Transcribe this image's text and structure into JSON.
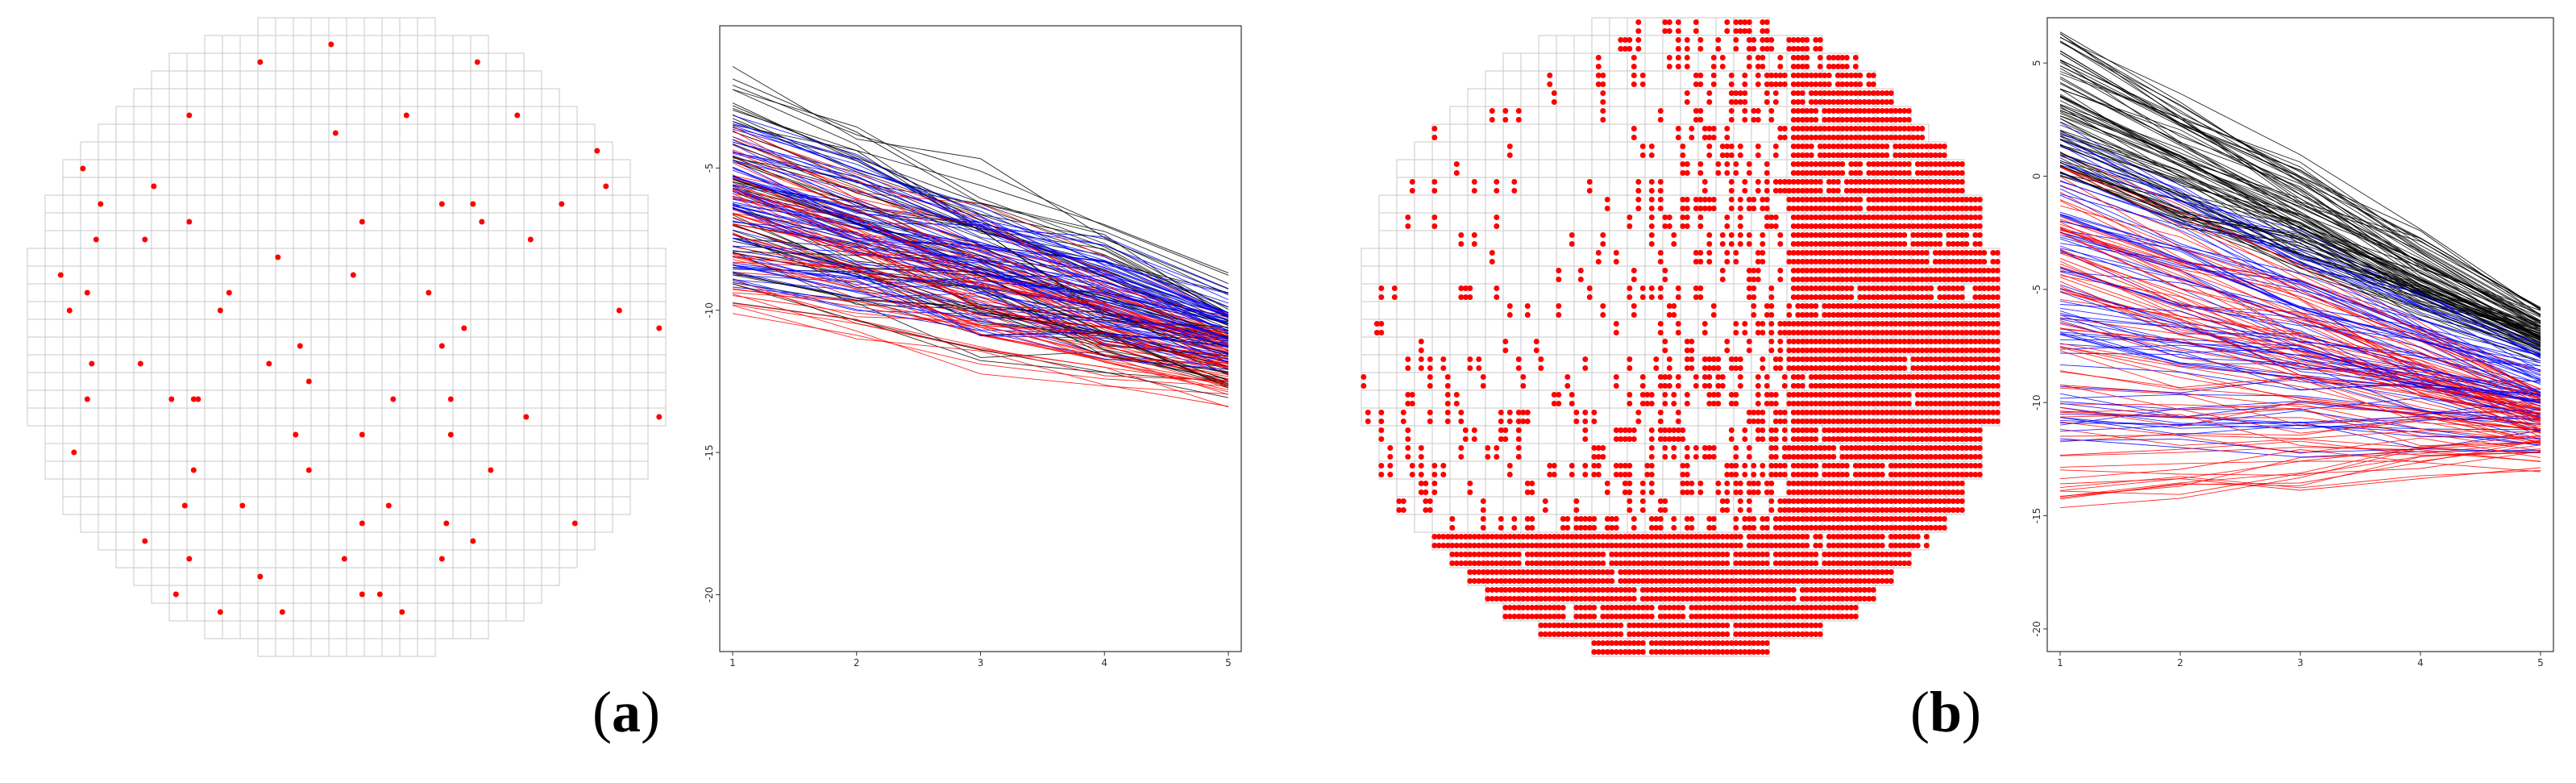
{
  "panels": [
    {
      "id": "a",
      "label_open": "(",
      "letter": "a",
      "label_close": ")"
    },
    {
      "id": "b",
      "label_open": "(",
      "letter": "b",
      "label_close": ")"
    }
  ],
  "colors": {
    "defect": "#ff0000",
    "grid": "#c8c8c8",
    "series_black": "#000000",
    "series_blue": "#0000ff",
    "series_red": "#ff0000",
    "frame": "#333333"
  },
  "chart_data": [
    {
      "type": "scatter",
      "panel": "a",
      "description_kind": "wafer-map",
      "grid": true,
      "defect_density": "sparse",
      "defects_rel": []
    },
    {
      "type": "line",
      "panel": "a",
      "x": [
        1,
        2,
        3,
        4,
        5
      ],
      "xticks": [
        "1",
        "2",
        "3",
        "4",
        "5"
      ],
      "yticks": [
        "-5",
        "-10",
        "-15",
        "-20"
      ],
      "yticks_values": [
        -5,
        -10,
        -15,
        -20
      ],
      "ylim": [
        -22,
        0
      ],
      "series": [
        {
          "color": "black",
          "start_range": [
            -1.5,
            -9.5
          ],
          "end_range": [
            -8.5,
            -13.5
          ],
          "count": 55
        },
        {
          "color": "blue",
          "start_range": [
            -3,
            -9
          ],
          "end_range": [
            -9,
            -12.5
          ],
          "count": 70
        },
        {
          "color": "red",
          "start_range": [
            -3.5,
            -10
          ],
          "end_range": [
            -10,
            -13.5
          ],
          "count": 60
        }
      ]
    },
    {
      "type": "scatter",
      "panel": "b",
      "description_kind": "wafer-map",
      "grid": true,
      "defect_density": "dense"
    },
    {
      "type": "line",
      "panel": "b",
      "x": [
        1,
        2,
        3,
        4,
        5
      ],
      "xticks": [
        "1",
        "2",
        "3",
        "4",
        "5"
      ],
      "yticks": [
        "5",
        "0",
        "-5",
        "-10",
        "-15",
        "-20"
      ],
      "yticks_values": [
        5,
        0,
        -5,
        -10,
        -15,
        -20
      ],
      "ylim": [
        -21,
        7
      ],
      "series": [
        {
          "color": "black",
          "start_range": [
            6.5,
            0
          ],
          "end_range": [
            -5.5,
            -8
          ],
          "count": 80
        },
        {
          "color": "blue",
          "start_range": [
            2,
            -12
          ],
          "end_range": [
            -7,
            -12.5
          ],
          "count": 80
        },
        {
          "color": "red",
          "start_range": [
            1,
            -15
          ],
          "end_range": [
            -8.5,
            -13.5
          ],
          "count": 80
        }
      ]
    }
  ]
}
